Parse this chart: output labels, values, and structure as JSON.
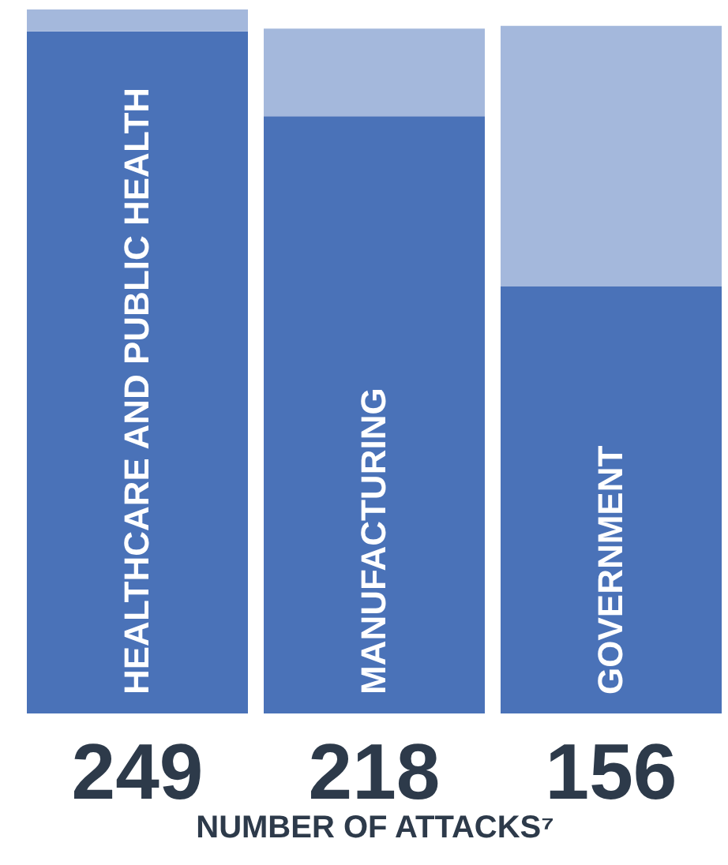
{
  "chart_data": {
    "type": "bar",
    "categories": [
      "HEALTHCARE AND PUBLIC HEALTH",
      "MANUFACTURING",
      "GOVERNMENT"
    ],
    "stacked": true,
    "tick_labels": false,
    "series": [
      {
        "color": "#4a72b8",
        "values": [
          249,
          218,
          156
        ],
        "value_labels": [
          "249",
          "218",
          "156"
        ]
      },
      {
        "color": "#a4b8dc",
        "values": [
          8,
          32,
          95
        ]
      }
    ],
    "xlabel": "NUMBER OF ATTACKS⁷"
  }
}
